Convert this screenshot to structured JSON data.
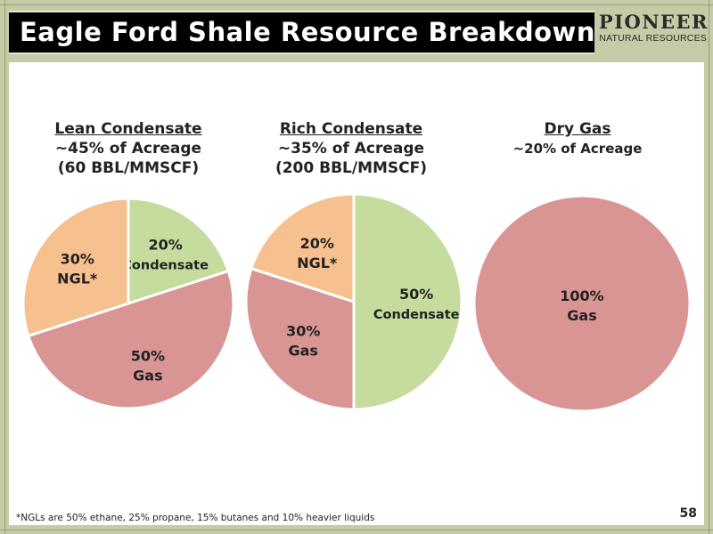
{
  "header": {
    "title": "Eagle Ford Shale Resource Breakdown",
    "logo_name": "PIONEER",
    "logo_sub": "NATURAL RESOURCES"
  },
  "colors": {
    "condensate": "#c6dc9e",
    "gas": "#d99593",
    "ngl": "#f7c08f"
  },
  "chart_data": [
    {
      "type": "pie",
      "title": "Lean Condensate",
      "subtitle": "~45% of Acreage",
      "subtitle2": "(60 BBL/MMSCF)",
      "slices": [
        {
          "name": "Condensate",
          "value": 20,
          "label_line1": "20%",
          "label_line2": "Condensate",
          "color": "#c6dc9e"
        },
        {
          "name": "Gas",
          "value": 50,
          "label_line1": "50%",
          "label_line2": "Gas",
          "color": "#d99593"
        },
        {
          "name": "NGL",
          "value": 30,
          "label_line1": "30%",
          "label_line2": "NGL*",
          "color": "#f7c08f"
        }
      ]
    },
    {
      "type": "pie",
      "title": "Rich Condensate",
      "subtitle": "~35% of Acreage",
      "subtitle2": "(200 BBL/MMSCF)",
      "slices": [
        {
          "name": "Condensate",
          "value": 50,
          "label_line1": "50%",
          "label_line2": "Condensate",
          "color": "#c6dc9e"
        },
        {
          "name": "Gas",
          "value": 30,
          "label_line1": "30%",
          "label_line2": "Gas",
          "color": "#d99593"
        },
        {
          "name": "NGL",
          "value": 20,
          "label_line1": "20%",
          "label_line2": "NGL*",
          "color": "#f7c08f"
        }
      ]
    },
    {
      "type": "pie",
      "title": "Dry Gas",
      "subtitle": "~20% of Acreage",
      "subtitle2": "",
      "slices": [
        {
          "name": "Gas",
          "value": 100,
          "label_line1": "100%",
          "label_line2": "Gas",
          "color": "#d99593"
        }
      ]
    }
  ],
  "footer": {
    "note": "*NGLs are 50% ethane, 25% propane, 15% butanes and 10% heavier liquids",
    "page": "58"
  }
}
